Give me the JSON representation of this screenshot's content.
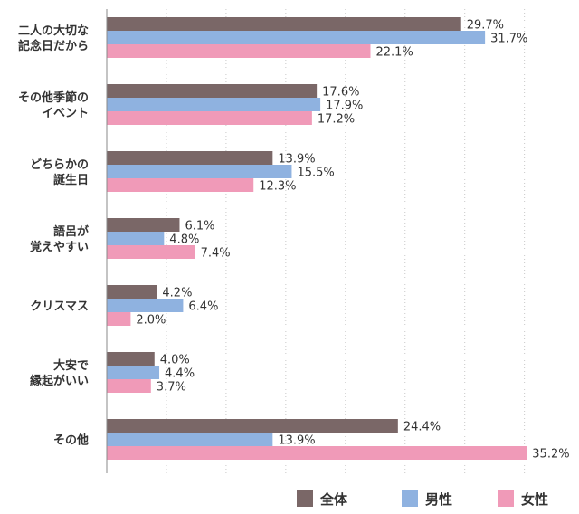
{
  "chart_data": {
    "type": "bar",
    "orientation": "horizontal",
    "categories": [
      [
        "二人の大切な",
        "記念日だから"
      ],
      [
        "その他季節の",
        "イベント"
      ],
      [
        "どちらかの",
        "誕生日"
      ],
      [
        "語呂が",
        "覚えやすい"
      ],
      [
        "クリスマス"
      ],
      [
        "大安で",
        "縁起がいい"
      ],
      [
        "その他"
      ]
    ],
    "series": [
      {
        "name": "全体",
        "color": "#7a6767",
        "values": [
          29.7,
          17.6,
          13.9,
          6.1,
          4.2,
          4.0,
          24.4
        ]
      },
      {
        "name": "男性",
        "color": "#8fb2e0",
        "values": [
          31.7,
          17.9,
          15.5,
          4.8,
          6.4,
          4.4,
          13.9
        ]
      },
      {
        "name": "女性",
        "color": "#f09ab8",
        "values": [
          22.1,
          17.2,
          12.3,
          7.4,
          2.0,
          3.7,
          35.2
        ]
      }
    ],
    "value_suffix": "%",
    "xlim": [
      0,
      36
    ],
    "grid": "vertical-dotted",
    "legend": "bottom-right"
  }
}
